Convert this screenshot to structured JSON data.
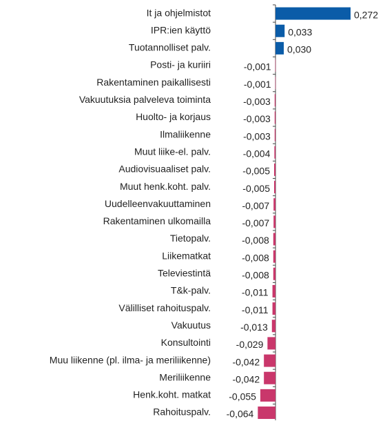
{
  "chart_data": {
    "type": "bar",
    "orientation": "horizontal",
    "categories": [
      "It ja ohjelmistot",
      "IPR:ien käyttö",
      "Tuotannolliset palv.",
      "Posti- ja kuriiri",
      "Rakentaminen paikallisesti",
      "Vakuutuksia palveleva toiminta",
      "Huolto- ja korjaus",
      "Ilmaliikenne",
      "Muut liike-el. palv.",
      "Audiovisuaaliset palv.",
      "Muut henk.koht. palv.",
      "Uudelleenvakuuttaminen",
      "Rakentaminen ulkomailla",
      "Tietopalv.",
      "Liikematkat",
      "Televiestintä",
      "T&k-palv.",
      "Välilliset rahoituspalv.",
      "Vakuutus",
      "Konsultointi",
      "Muu liikenne (pl. ilma- ja meriliikenne)",
      "Meriliikenne",
      "Henk.koht. matkat",
      "Rahoituspalv."
    ],
    "values": [
      0.272,
      0.033,
      0.03,
      -0.001,
      -0.001,
      -0.003,
      -0.003,
      -0.003,
      -0.004,
      -0.005,
      -0.005,
      -0.007,
      -0.007,
      -0.008,
      -0.008,
      -0.008,
      -0.011,
      -0.011,
      -0.013,
      -0.029,
      -0.042,
      -0.042,
      -0.055,
      -0.064
    ],
    "value_labels": [
      "0,272",
      "0,033",
      "0,030",
      "-0,001",
      "-0,001",
      "-0,003",
      "-0,003",
      "-0,003",
      "-0,004",
      "-0,005",
      "-0,005",
      "-0,007",
      "-0,007",
      "-0,008",
      "-0,008",
      "-0,008",
      "-0,011",
      "-0,011",
      "-0,013",
      "-0,029",
      "-0,042",
      "-0,042",
      "-0,055",
      "-0,064"
    ],
    "positive_color": "#0b5ca8",
    "negative_color": "#c9376b"
  }
}
